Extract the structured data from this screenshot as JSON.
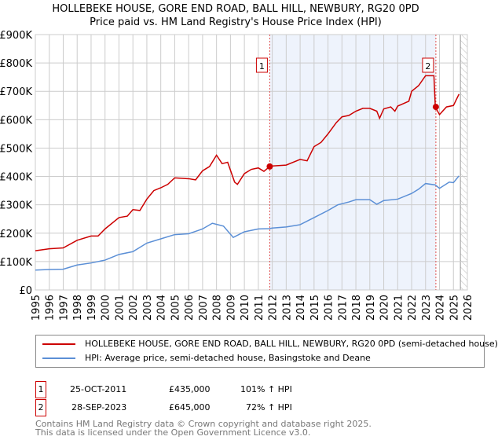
{
  "title": "HOLLEBEKE HOUSE, GORE END ROAD, BALL HILL, NEWBURY, RG20 0PD",
  "subtitle": "Price paid vs. HM Land Registry's House Price Index (HPI)",
  "chart_data": {
    "type": "line",
    "ylim": [
      0,
      900000
    ],
    "xlim": [
      1995,
      2026
    ],
    "yticks": [
      {
        "v": 0,
        "l": "£0"
      },
      {
        "v": 100000,
        "l": "£100K"
      },
      {
        "v": 200000,
        "l": "£200K"
      },
      {
        "v": 300000,
        "l": "£300K"
      },
      {
        "v": 400000,
        "l": "£400K"
      },
      {
        "v": 500000,
        "l": "£500K"
      },
      {
        "v": 600000,
        "l": "£600K"
      },
      {
        "v": 700000,
        "l": "£700K"
      },
      {
        "v": 800000,
        "l": "£800K"
      },
      {
        "v": 900000,
        "l": "£900K"
      }
    ],
    "xticks": [
      "1995",
      "1996",
      "1997",
      "1998",
      "1999",
      "2000",
      "2001",
      "2002",
      "2003",
      "2004",
      "2005",
      "2006",
      "2007",
      "2008",
      "2009",
      "2010",
      "2011",
      "2012",
      "2013",
      "2014",
      "2015",
      "2016",
      "2017",
      "2018",
      "2019",
      "2020",
      "2021",
      "2022",
      "2023",
      "2024",
      "2025",
      "2026"
    ],
    "shaded_range": [
      2011.82,
      2023.74
    ],
    "hatched_from": 2025.5,
    "series": [
      {
        "name": "HOLLEBEKE HOUSE, GORE END ROAD, BALL HILL, NEWBURY, RG20 0PD (semi-detached house)",
        "color": "#cc0000",
        "x": [
          1995,
          1996,
          1997,
          1998,
          1999,
          1999.5,
          2000,
          2001,
          2001.6,
          2002,
          2002.5,
          2003,
          2003.5,
          2004,
          2004.5,
          2005,
          2006,
          2006.5,
          2007,
          2007.5,
          2008,
          2008.4,
          2008.8,
          2009.3,
          2009.5,
          2010,
          2010.5,
          2011,
          2011.4,
          2011.82,
          2012,
          2013,
          2014,
          2014.5,
          2015,
          2015.5,
          2016,
          2016.6,
          2017,
          2017.5,
          2018,
          2018.5,
          2019,
          2019.5,
          2019.7,
          2020,
          2020.5,
          2020.8,
          2021,
          2021.8,
          2022,
          2022.5,
          2023,
          2023.6,
          2023.7,
          2024,
          2024.5,
          2025,
          2025.4
        ],
        "y": [
          138,
          145,
          148,
          175,
          190,
          190,
          215,
          255,
          260,
          283,
          280,
          320,
          350,
          360,
          372,
          395,
          392,
          388,
          420,
          435,
          475,
          445,
          450,
          380,
          372,
          410,
          425,
          430,
          418,
          435,
          437,
          440,
          460,
          455,
          505,
          520,
          550,
          590,
          610,
          615,
          630,
          640,
          640,
          630,
          605,
          638,
          645,
          630,
          648,
          665,
          700,
          720,
          755,
          755,
          645,
          618,
          645,
          650,
          690
        ]
      },
      {
        "name": "HPI: Average price, semi-detached house, Basingstoke and Deane",
        "color": "#5b8fd6",
        "x": [
          1995,
          1996,
          1997,
          1998,
          1999,
          2000,
          2001,
          2002,
          2003,
          2004,
          2005,
          2006,
          2007,
          2007.7,
          2008.5,
          2009.2,
          2010,
          2011,
          2011.8,
          2012,
          2013,
          2014,
          2015,
          2016,
          2016.7,
          2017.5,
          2018,
          2019,
          2019.5,
          2020,
          2021,
          2022,
          2022.5,
          2023,
          2023.7,
          2024,
          2024.7,
          2025,
          2025.4
        ],
        "y": [
          70,
          72,
          73,
          88,
          95,
          105,
          125,
          135,
          165,
          180,
          195,
          198,
          215,
          235,
          225,
          185,
          205,
          215,
          216,
          218,
          222,
          230,
          255,
          280,
          300,
          310,
          318,
          318,
          302,
          315,
          320,
          340,
          355,
          375,
          370,
          358,
          380,
          378,
          402
        ]
      }
    ],
    "y_units": 1000,
    "sales": [
      {
        "label": "1",
        "x": 2011.82,
        "y": 435000
      },
      {
        "label": "2",
        "x": 2023.74,
        "y": 645000
      }
    ]
  },
  "legend": {
    "red": "HOLLEBEKE HOUSE, GORE END ROAD, BALL HILL, NEWBURY, RG20 0PD (semi-detached house)",
    "blue": "HPI: Average price, semi-detached house, Basingstoke and Deane"
  },
  "transactions": [
    {
      "num": "1",
      "date": "25-OCT-2011",
      "price": "£435,000",
      "hpi": "101% ↑ HPI"
    },
    {
      "num": "2",
      "date": "28-SEP-2023",
      "price": "£645,000",
      "hpi": "72% ↑ HPI"
    }
  ],
  "footer": [
    "Contains HM Land Registry data © Crown copyright and database right 2025.",
    "This data is licensed under the Open Government Licence v3.0."
  ]
}
